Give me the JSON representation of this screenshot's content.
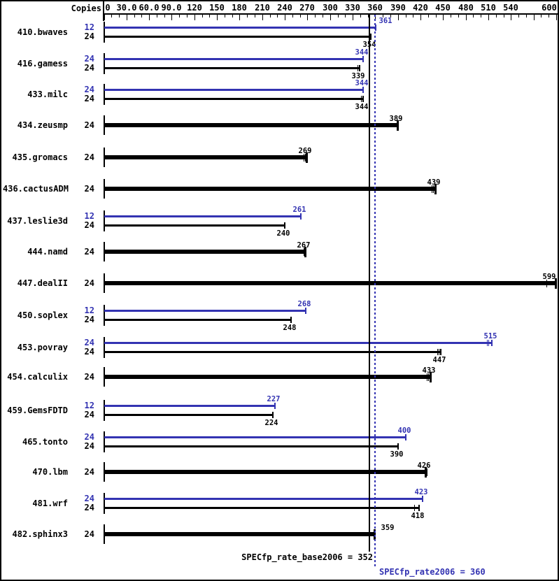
{
  "chart_data": {
    "type": "bar",
    "orientation": "horizontal",
    "copies_header": "Copies",
    "colors": {
      "peak": "#3333b2",
      "base": "#000000"
    },
    "axis": {
      "min": 0,
      "max": 606,
      "minor_step": 10,
      "major_step": 30,
      "tick_label_values": [
        0,
        30,
        60,
        90,
        120,
        150,
        180,
        210,
        240,
        270,
        300,
        330,
        360,
        390,
        420,
        450,
        480,
        510,
        540,
        600
      ],
      "tick_labels": [
        "0",
        "30.0",
        "60.0",
        "90.0",
        "120",
        "150",
        "180",
        "210",
        "240",
        "270",
        "300",
        "330",
        "360",
        "390",
        "420",
        "450",
        "480",
        "510",
        "540",
        "600"
      ]
    },
    "benchmarks": [
      {
        "name": "410.bwaves",
        "bars": [
          {
            "copies": "12",
            "role": "peak",
            "value": 361,
            "label_x_override": 549
          },
          {
            "copies": "24",
            "role": "base",
            "value": 354,
            "marks": [
              351
            ]
          }
        ]
      },
      {
        "name": "416.gamess",
        "bars": [
          {
            "copies": "24",
            "role": "peak",
            "value": 344
          },
          {
            "copies": "24",
            "role": "base",
            "value": 339,
            "marks": [
              336
            ]
          }
        ]
      },
      {
        "name": "433.milc",
        "bars": [
          {
            "copies": "24",
            "role": "peak",
            "value": 344
          },
          {
            "copies": "24",
            "role": "base",
            "value": 344,
            "marks": [
              341
            ]
          }
        ]
      },
      {
        "name": "434.zeusmp",
        "bars": [
          {
            "copies": "24",
            "role": "both",
            "value": 389
          }
        ]
      },
      {
        "name": "435.gromacs",
        "bars": [
          {
            "copies": "24",
            "role": "both",
            "value": 269,
            "marks": [
              265,
              267
            ]
          }
        ]
      },
      {
        "name": "436.cactusADM",
        "bars": [
          {
            "copies": "24",
            "role": "both",
            "value": 439,
            "marks": [
              435,
              437
            ]
          }
        ]
      },
      {
        "name": "437.leslie3d",
        "bars": [
          {
            "copies": "12",
            "role": "peak",
            "value": 261
          },
          {
            "copies": "24",
            "role": "base",
            "value": 240
          }
        ]
      },
      {
        "name": "444.namd",
        "bars": [
          {
            "copies": "24",
            "role": "both",
            "value": 267,
            "marks": [
              265
            ]
          }
        ]
      },
      {
        "name": "447.dealII",
        "bars": [
          {
            "copies": "24",
            "role": "both",
            "value": 599,
            "marks": [
              587
            ],
            "label_x_override": 783
          }
        ]
      },
      {
        "name": "450.soplex",
        "bars": [
          {
            "copies": "12",
            "role": "peak",
            "value": 268
          },
          {
            "copies": "24",
            "role": "base",
            "value": 248
          }
        ]
      },
      {
        "name": "453.povray",
        "bars": [
          {
            "copies": "24",
            "role": "peak",
            "value": 515,
            "marks": [
              508,
              510
            ]
          },
          {
            "copies": "24",
            "role": "base",
            "value": 447,
            "marks": [
              442,
              444
            ]
          }
        ]
      },
      {
        "name": "454.calculix",
        "bars": [
          {
            "copies": "24",
            "role": "both",
            "value": 433,
            "marks": [
              428,
              430
            ]
          }
        ]
      },
      {
        "name": "459.GemsFDTD",
        "bars": [
          {
            "copies": "12",
            "role": "peak",
            "value": 227
          },
          {
            "copies": "24",
            "role": "base",
            "value": 224
          }
        ]
      },
      {
        "name": "465.tonto",
        "bars": [
          {
            "copies": "24",
            "role": "peak",
            "value": 400
          },
          {
            "copies": "24",
            "role": "base",
            "value": 390
          }
        ]
      },
      {
        "name": "470.lbm",
        "bars": [
          {
            "copies": "24",
            "role": "both",
            "value": 426,
            "marks": [
              428
            ]
          }
        ]
      },
      {
        "name": "481.wrf",
        "bars": [
          {
            "copies": "24",
            "role": "peak",
            "value": 423
          },
          {
            "copies": "24",
            "role": "base",
            "value": 418,
            "marks": [
              412
            ]
          }
        ]
      },
      {
        "name": "482.sphinx3",
        "bars": [
          {
            "copies": "24",
            "role": "both",
            "value": 359,
            "label_x_override": 552
          }
        ]
      }
    ],
    "reference_lines": [
      {
        "kind": "base",
        "value": 352,
        "style": "solid",
        "color": "#000000"
      },
      {
        "kind": "peak",
        "value": 360,
        "style": "dotted",
        "color": "#3333b2"
      }
    ],
    "summary": {
      "base_label": "SPECfp_rate_base2006 = 352",
      "base_value": 352,
      "peak_label": "SPECfp_rate2006 = 360",
      "peak_value": 360
    }
  }
}
